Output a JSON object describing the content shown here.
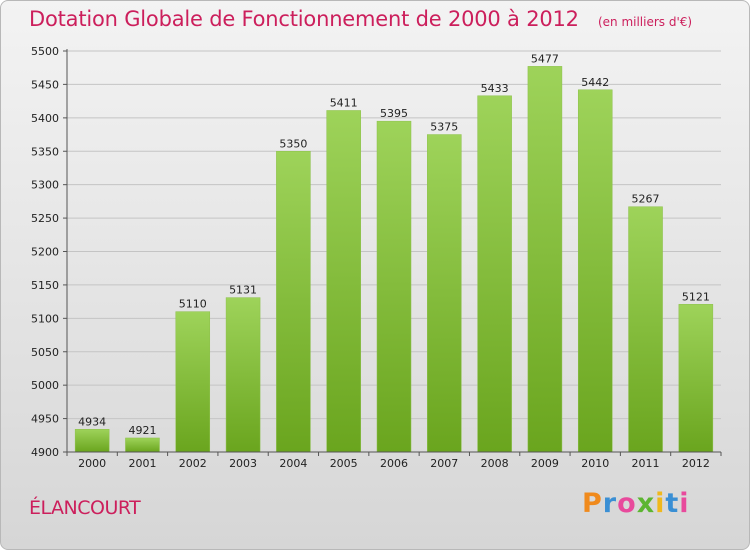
{
  "title": "Dotation Globale de Fonctionnement de 2000 à 2012",
  "unit_note": "(en milliers d'€)",
  "commune": "ÉLANCOURT",
  "logo": {
    "text": "Proxiti",
    "colors": [
      "#f08a1c",
      "#3a8fd4",
      "#e84a9c",
      "#5cb531",
      "#f0b81c",
      "#3a8fd4",
      "#e84a9c"
    ]
  },
  "chart_data": {
    "type": "bar",
    "title": "Dotation Globale de Fonctionnement de 2000 à 2012",
    "subtitle": "(en milliers d'€)",
    "categories": [
      "2000",
      "2001",
      "2002",
      "2003",
      "2004",
      "2005",
      "2006",
      "2007",
      "2008",
      "2009",
      "2010",
      "2011",
      "2012"
    ],
    "values": [
      4934,
      4921,
      5110,
      5131,
      5350,
      5411,
      5395,
      5375,
      5433,
      5477,
      5442,
      5267,
      5121
    ],
    "ylim": [
      4900,
      5500
    ],
    "yticks": [
      4900,
      4950,
      5000,
      5050,
      5100,
      5150,
      5200,
      5250,
      5300,
      5350,
      5400,
      5450,
      5500
    ],
    "grid": true,
    "bar_color_light": "#9ed35a",
    "bar_color_dark": "#6aa51e"
  }
}
